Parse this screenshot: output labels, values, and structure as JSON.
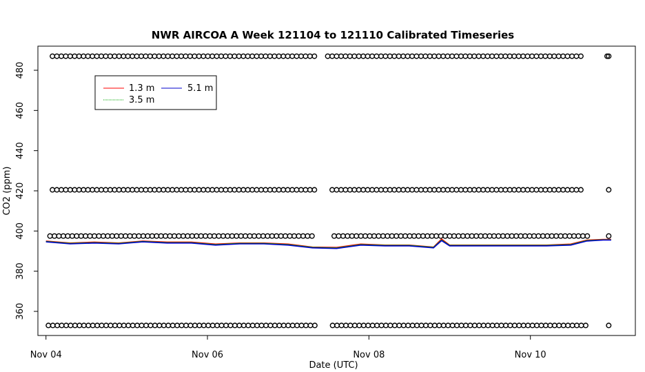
{
  "chart_data": {
    "type": "line",
    "title": "NWR AIRCOA A  Week 121104 to 121110  Calibrated Timeseries",
    "xlabel": "Date (UTC)",
    "ylabel": "CO2 (ppm)",
    "xlim": [
      -0.1,
      7.3
    ],
    "ylim": [
      348,
      492
    ],
    "x_ticks": [
      {
        "value": 0,
        "label": "Nov 04"
      },
      {
        "value": 2,
        "label": "Nov 06"
      },
      {
        "value": 4,
        "label": "Nov 08"
      },
      {
        "value": 6,
        "label": "Nov 10"
      }
    ],
    "y_ticks": [
      360,
      380,
      400,
      420,
      440,
      460,
      480
    ],
    "x_unit": "days since Nov 04 00:00 UTC",
    "legend": {
      "placement": "top-left",
      "entries": [
        {
          "label": "1.3 m",
          "color": "#ff0000"
        },
        {
          "label": "3.5 m",
          "color": "#00aa00"
        },
        {
          "label": "5.1 m",
          "color": "#0000cc"
        }
      ]
    },
    "series": [
      {
        "name": "1.3 m",
        "color": "#ff0000",
        "x": [
          0.0,
          0.3,
          0.6,
          0.9,
          1.2,
          1.5,
          1.8,
          2.1,
          2.4,
          2.7,
          3.0,
          3.3,
          3.6,
          3.9,
          4.2,
          4.5,
          4.8,
          4.9,
          5.0,
          5.3,
          5.6,
          5.9,
          6.2,
          6.5,
          6.7,
          6.9,
          7.0
        ],
        "y": [
          395,
          394,
          394.5,
          394,
          395,
          394.5,
          394.5,
          393.5,
          394,
          394,
          393.5,
          392,
          391.8,
          393.5,
          393,
          393,
          392,
          396,
          393,
          393,
          393,
          393,
          393,
          393.5,
          395.5,
          395.8,
          395.8
        ]
      },
      {
        "name": "3.5 m",
        "color": "#00aa00",
        "x": [
          0.0,
          0.3,
          0.6,
          0.9,
          1.2,
          1.5,
          1.8,
          2.1,
          2.4,
          2.7,
          3.0,
          3.3,
          3.6,
          3.9,
          4.2,
          4.5,
          4.8,
          4.9,
          5.0,
          5.3,
          5.6,
          5.9,
          6.2,
          6.5,
          6.7,
          6.9,
          7.0
        ],
        "y": [
          394.8,
          393.8,
          394.2,
          393.8,
          394.8,
          394.2,
          394.2,
          393.2,
          393.8,
          393.8,
          393.2,
          391.8,
          391.5,
          393.2,
          392.8,
          392.8,
          391.8,
          395.5,
          392.8,
          392.8,
          392.8,
          392.8,
          392.8,
          393.2,
          395.2,
          395.6,
          395.6
        ]
      },
      {
        "name": "5.1 m",
        "color": "#0000cc",
        "x": [
          0.0,
          0.3,
          0.6,
          0.9,
          1.2,
          1.5,
          1.8,
          2.1,
          2.4,
          2.7,
          3.0,
          3.3,
          3.6,
          3.9,
          4.2,
          4.5,
          4.8,
          4.9,
          5.0,
          5.3,
          5.6,
          5.9,
          6.2,
          6.5,
          6.7,
          6.9,
          7.0
        ],
        "y": [
          394.6,
          393.6,
          394.0,
          393.6,
          394.6,
          394.0,
          394.0,
          393.0,
          393.6,
          393.6,
          393.0,
          391.6,
          391.3,
          393.0,
          392.6,
          392.6,
          391.6,
          395.2,
          392.6,
          392.6,
          392.6,
          392.6,
          392.6,
          393.0,
          395.0,
          395.5,
          395.5
        ]
      }
    ],
    "flag_rows": [
      {
        "y": 487,
        "x_start": 0.08,
        "x_end": 6.65,
        "step": 0.055,
        "gaps": [
          [
            3.35,
            3.48
          ]
        ],
        "extra_x": [
          6.95,
          6.97
        ]
      },
      {
        "y": 420.5,
        "x_start": 0.08,
        "x_end": 6.65,
        "step": 0.055,
        "gaps": [
          [
            3.35,
            3.5
          ]
        ],
        "extra_x": [
          6.97
        ]
      },
      {
        "y": 397.5,
        "x_start": 0.05,
        "x_end": 6.72,
        "step": 0.055,
        "gaps": [
          [
            3.35,
            3.55
          ]
        ],
        "extra_x": [
          6.97
        ]
      },
      {
        "y": 353,
        "x_start": 0.03,
        "x_end": 6.72,
        "step": 0.055,
        "gaps": [
          [
            3.35,
            3.55
          ]
        ],
        "extra_x": [
          6.97
        ]
      }
    ]
  }
}
